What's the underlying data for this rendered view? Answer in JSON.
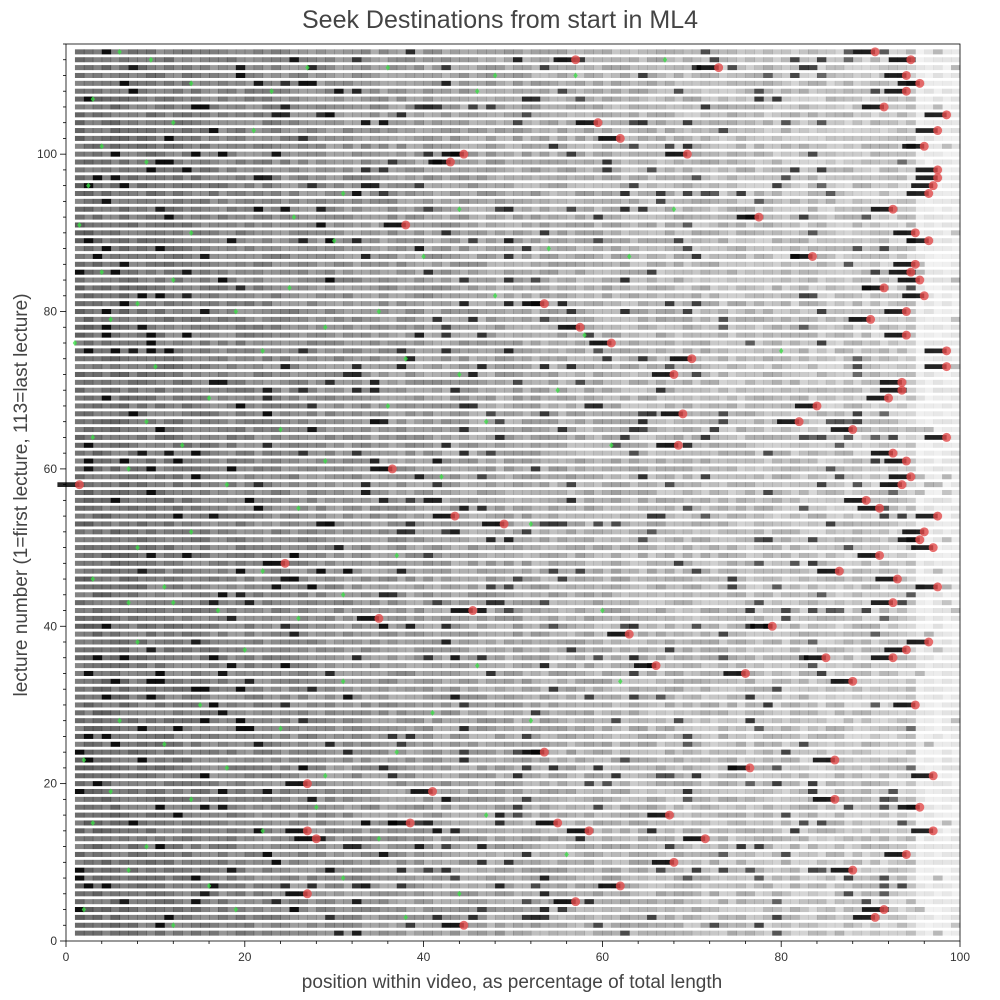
{
  "chart_data": {
    "type": "scatter",
    "title": "Seek Destinations from start in ML4",
    "xlabel": "position within video, as percentage of total length",
    "ylabel": "lecture number (1=first lecture, 113=last lecture)",
    "xlim": [
      0,
      100
    ],
    "ylim": [
      0,
      114
    ],
    "x_ticks": [
      0,
      20,
      40,
      60,
      80,
      100
    ],
    "y_ticks": [
      0,
      20,
      40,
      60,
      80,
      100
    ],
    "grid": false,
    "legend": "none",
    "background_series": {
      "name": "",
      "description_type": "grayscale density strips per lecture (row 1 to 113)",
      "rows": 113
    },
    "series": [
      {
        "name": "",
        "color": "#e24a4a",
        "marker": "circle",
        "points": [
          [
            1.5,
            58
          ],
          [
            90.5,
            113
          ],
          [
            57,
            112
          ],
          [
            73,
            111
          ],
          [
            94.5,
            112
          ],
          [
            94,
            110
          ],
          [
            95.5,
            109
          ],
          [
            94,
            108
          ],
          [
            91.5,
            106
          ],
          [
            59.5,
            104
          ],
          [
            62,
            102
          ],
          [
            44.5,
            100
          ],
          [
            43,
            99
          ],
          [
            69.5,
            100
          ],
          [
            98.5,
            105
          ],
          [
            97.5,
            103
          ],
          [
            96,
            101
          ],
          [
            97.5,
            98
          ],
          [
            97.5,
            97
          ],
          [
            97,
            96
          ],
          [
            96.5,
            95
          ],
          [
            92.5,
            93
          ],
          [
            77.5,
            92
          ],
          [
            38,
            91
          ],
          [
            95,
            90
          ],
          [
            96.5,
            89
          ],
          [
            83.5,
            87
          ],
          [
            95,
            86
          ],
          [
            94.5,
            85
          ],
          [
            95.5,
            84
          ],
          [
            91.5,
            83
          ],
          [
            96,
            82
          ],
          [
            53.5,
            81
          ],
          [
            57.5,
            78
          ],
          [
            94,
            80
          ],
          [
            90,
            79
          ],
          [
            94,
            77
          ],
          [
            61,
            76
          ],
          [
            98.5,
            75
          ],
          [
            70,
            74
          ],
          [
            98.5,
            73
          ],
          [
            68,
            72
          ],
          [
            93.5,
            71
          ],
          [
            93.5,
            70
          ],
          [
            92,
            69
          ],
          [
            84,
            68
          ],
          [
            69,
            67
          ],
          [
            82,
            66
          ],
          [
            88,
            65
          ],
          [
            68.5,
            63
          ],
          [
            98.5,
            64
          ],
          [
            92.5,
            62
          ],
          [
            94,
            61
          ],
          [
            36.5,
            60
          ],
          [
            94.5,
            59
          ],
          [
            93.5,
            58
          ],
          [
            89.5,
            56
          ],
          [
            91,
            55
          ],
          [
            43.5,
            54
          ],
          [
            49,
            53
          ],
          [
            97.5,
            54
          ],
          [
            96,
            52
          ],
          [
            95.5,
            51
          ],
          [
            97,
            50
          ],
          [
            91,
            49
          ],
          [
            24.5,
            48
          ],
          [
            86.5,
            47
          ],
          [
            93,
            46
          ],
          [
            97.5,
            45
          ],
          [
            92.5,
            43
          ],
          [
            45.5,
            42
          ],
          [
            35,
            41
          ],
          [
            79,
            40
          ],
          [
            63,
            39
          ],
          [
            96.5,
            38
          ],
          [
            94,
            37
          ],
          [
            85,
            36
          ],
          [
            92.5,
            36
          ],
          [
            66,
            35
          ],
          [
            76,
            34
          ],
          [
            88,
            33
          ],
          [
            95,
            30
          ],
          [
            53.5,
            24
          ],
          [
            86,
            23
          ],
          [
            76.5,
            22
          ],
          [
            97,
            21
          ],
          [
            27,
            20
          ],
          [
            41,
            19
          ],
          [
            86,
            18
          ],
          [
            95.5,
            17
          ],
          [
            67.5,
            16
          ],
          [
            38.5,
            15
          ],
          [
            55,
            15
          ],
          [
            27,
            14
          ],
          [
            58.5,
            14
          ],
          [
            97,
            14
          ],
          [
            28,
            13
          ],
          [
            71.5,
            13
          ],
          [
            94,
            11
          ],
          [
            68,
            10
          ],
          [
            88,
            9
          ],
          [
            62,
            7
          ],
          [
            27,
            6
          ],
          [
            57,
            5
          ],
          [
            91.5,
            4
          ],
          [
            90.5,
            3
          ],
          [
            44.5,
            2
          ]
        ]
      },
      {
        "name": "",
        "color": "#3fe04a",
        "marker": "diamond",
        "points": [
          [
            6,
            113
          ],
          [
            9.5,
            112
          ],
          [
            27,
            111
          ],
          [
            36,
            111
          ],
          [
            48,
            110
          ],
          [
            57,
            110
          ],
          [
            67,
            112
          ],
          [
            14,
            109
          ],
          [
            23,
            108
          ],
          [
            46,
            108
          ],
          [
            3,
            107
          ],
          [
            12,
            104
          ],
          [
            21,
            103
          ],
          [
            4,
            101
          ],
          [
            9,
            99
          ],
          [
            2.5,
            96
          ],
          [
            31,
            95
          ],
          [
            44,
            93
          ],
          [
            25.5,
            92
          ],
          [
            68,
            93
          ],
          [
            1.5,
            91
          ],
          [
            14,
            90
          ],
          [
            30,
            89
          ],
          [
            54,
            88
          ],
          [
            40,
            87
          ],
          [
            63,
            87
          ],
          [
            4,
            85
          ],
          [
            12,
            84
          ],
          [
            25,
            83
          ],
          [
            48,
            82
          ],
          [
            8,
            81
          ],
          [
            19,
            80
          ],
          [
            35,
            80
          ],
          [
            5,
            79
          ],
          [
            29,
            78
          ],
          [
            58,
            77
          ],
          [
            1,
            76
          ],
          [
            22,
            75
          ],
          [
            38,
            74
          ],
          [
            80,
            75
          ],
          [
            10,
            73
          ],
          [
            44,
            72
          ],
          [
            16,
            69
          ],
          [
            55,
            70
          ],
          [
            36,
            68
          ],
          [
            9,
            66
          ],
          [
            24,
            65
          ],
          [
            47,
            66
          ],
          [
            3,
            64
          ],
          [
            13,
            63
          ],
          [
            29,
            61
          ],
          [
            61,
            63
          ],
          [
            7,
            60
          ],
          [
            18,
            58
          ],
          [
            42,
            59
          ],
          [
            26,
            55
          ],
          [
            14,
            52
          ],
          [
            52,
            53
          ],
          [
            8,
            50
          ],
          [
            22,
            47
          ],
          [
            37,
            49
          ],
          [
            3,
            46
          ],
          [
            11,
            45
          ],
          [
            31,
            44
          ],
          [
            7,
            43
          ],
          [
            12,
            43
          ],
          [
            17,
            42
          ],
          [
            26,
            41
          ],
          [
            60,
            42
          ],
          [
            8,
            38
          ],
          [
            20,
            37
          ],
          [
            46,
            35
          ],
          [
            31,
            33
          ],
          [
            62,
            33
          ],
          [
            15,
            30
          ],
          [
            41,
            29
          ],
          [
            6,
            28
          ],
          [
            24,
            27
          ],
          [
            52,
            28
          ],
          [
            11,
            25
          ],
          [
            37,
            24
          ],
          [
            2,
            23
          ],
          [
            18,
            22
          ],
          [
            29,
            21
          ],
          [
            5,
            19
          ],
          [
            14,
            18
          ],
          [
            28,
            17
          ],
          [
            47,
            16
          ],
          [
            3,
            15
          ],
          [
            22,
            14
          ],
          [
            9,
            12
          ],
          [
            35,
            13
          ],
          [
            56,
            11
          ],
          [
            7,
            9
          ],
          [
            31,
            8
          ],
          [
            16,
            7
          ],
          [
            44,
            6
          ],
          [
            2,
            4
          ],
          [
            19,
            4
          ],
          [
            38,
            3
          ],
          [
            12,
            2
          ]
        ]
      }
    ]
  }
}
